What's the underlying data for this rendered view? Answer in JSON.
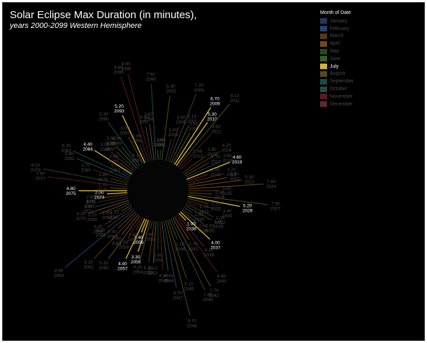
{
  "title": "Solar Eclipse Max Duration (in minutes),",
  "subtitle": "years 2000-2099 Western Hemisphere",
  "legend": {
    "title": "Month of Date",
    "highlighted": "July",
    "items": [
      {
        "label": "January",
        "color": "#203a57"
      },
      {
        "label": "February",
        "color": "#27416a"
      },
      {
        "label": "March",
        "color": "#5b3616"
      },
      {
        "label": "April",
        "color": "#6e4a22"
      },
      {
        "label": "May",
        "color": "#244a24"
      },
      {
        "label": "June",
        "color": "#3e5a2a"
      },
      {
        "label": "July",
        "color": "#d4b030"
      },
      {
        "label": "August",
        "color": "#564a1a"
      },
      {
        "label": "September",
        "color": "#1a4a4a"
      },
      {
        "label": "October",
        "color": "#264a48"
      },
      {
        "label": "November",
        "color": "#5a1a20"
      },
      {
        "label": "December",
        "color": "#5a2a34"
      }
    ]
  },
  "chart_data": {
    "type": "radial-bar",
    "title": "Solar Eclipse Max Duration (in minutes),",
    "subtitle": "years 2000-2099 Western Hemisphere",
    "points": [
      {
        "year": 2000,
        "duration": 1.0,
        "month": "June"
      },
      {
        "year": 2001,
        "duration": 1.0,
        "month": "May"
      },
      {
        "year": 2002,
        "duration": 6.4,
        "month": "August"
      },
      {
        "year": 2004,
        "duration": 2.2,
        "month": "September"
      },
      {
        "year": 2005,
        "duration": 3.6,
        "month": "November"
      },
      {
        "year": 2006,
        "duration": 7.2,
        "month": "October"
      },
      {
        "year": 2007,
        "duration": 4.1,
        "month": "August"
      },
      {
        "year": 2008,
        "duration": 3.5,
        "month": "June"
      },
      {
        "year": 2009,
        "duration": 6.7,
        "month": "July"
      },
      {
        "year": 2010,
        "duration": 5.3,
        "month": "July"
      },
      {
        "year": 2011,
        "duration": 8.1,
        "month": "June"
      },
      {
        "year": 2012,
        "duration": 4.6,
        "month": "November"
      },
      {
        "year": 2013,
        "duration": 1.6,
        "month": "November"
      },
      {
        "year": 2015,
        "duration": 2.8,
        "month": "March"
      },
      {
        "year": 2016,
        "duration": 4.2,
        "month": "March"
      },
      {
        "year": 2017,
        "duration": 2.7,
        "month": "August"
      },
      {
        "year": 2018,
        "duration": 3.8,
        "month": "February"
      },
      {
        "year": 2019,
        "duration": 4.6,
        "month": "July"
      },
      {
        "year": 2020,
        "duration": 2.2,
        "month": "December"
      },
      {
        "year": 2021,
        "duration": 3.7,
        "month": "December"
      },
      {
        "year": 2022,
        "duration": 3.9,
        "month": "April"
      },
      {
        "year": 2023,
        "duration": 5.3,
        "month": "April"
      },
      {
        "year": 2024,
        "duration": 7.4,
        "month": "April"
      },
      {
        "year": 2025,
        "duration": 3.0,
        "month": "March"
      },
      {
        "year": 2026,
        "duration": 2.3,
        "month": "August"
      },
      {
        "year": 2027,
        "duration": 7.9,
        "month": "August"
      },
      {
        "year": 2028,
        "duration": 5.2,
        "month": "July"
      },
      {
        "year": 2029,
        "duration": 2.1,
        "month": "June"
      },
      {
        "year": 2030,
        "duration": 3.4,
        "month": "November"
      },
      {
        "year": 2031,
        "duration": 1.1,
        "month": "November"
      },
      {
        "year": 2032,
        "duration": 3.0,
        "month": "May"
      },
      {
        "year": 2033,
        "duration": 3.0,
        "month": "March"
      },
      {
        "year": 2034,
        "duration": 1.0,
        "month": "September"
      },
      {
        "year": 2035,
        "duration": 2.5,
        "month": "September"
      },
      {
        "year": 2036,
        "duration": 2.0,
        "month": "August"
      },
      {
        "year": 2037,
        "duration": 4.0,
        "month": "July"
      },
      {
        "year": 2038,
        "duration": 1.0,
        "month": "July"
      },
      {
        "year": 2039,
        "duration": 4.1,
        "month": "December"
      },
      {
        "year": 2040,
        "duration": 6.9,
        "month": "November"
      },
      {
        "year": 2041,
        "duration": 2.7,
        "month": "April"
      },
      {
        "year": 2042,
        "duration": 7.7,
        "month": "April"
      },
      {
        "year": 2043,
        "duration": 7.8,
        "month": "October"
      },
      {
        "year": 2044,
        "duration": 2.1,
        "month": "August"
      },
      {
        "year": 2045,
        "duration": 6.1,
        "month": "August"
      },
      {
        "year": 2046,
        "duration": 9.7,
        "month": "August"
      },
      {
        "year": 2047,
        "duration": 6.7,
        "month": "February"
      },
      {
        "year": 2048,
        "duration": 4.9,
        "month": "June"
      },
      {
        "year": 2049,
        "duration": 4.8,
        "month": "November"
      },
      {
        "year": 2050,
        "duration": 2.8,
        "month": "May"
      },
      {
        "year": 2051,
        "duration": 4.1,
        "month": "April"
      },
      {
        "year": 2052,
        "duration": 4.1,
        "month": "March"
      },
      {
        "year": 2053,
        "duration": 0.8,
        "month": "September"
      },
      {
        "year": 2054,
        "duration": 4.2,
        "month": "August"
      },
      {
        "year": 2055,
        "duration": 3.3,
        "month": "July"
      },
      {
        "year": 2056,
        "duration": 1.4,
        "month": "July"
      },
      {
        "year": 2057,
        "duration": 4.4,
        "month": "July"
      },
      {
        "year": 2058,
        "duration": 1.4,
        "month": "March"
      },
      {
        "year": 2059,
        "duration": 2.5,
        "month": "November"
      },
      {
        "year": 2060,
        "duration": 5.3,
        "month": "April"
      },
      {
        "year": 2061,
        "duration": 2.6,
        "month": "April"
      },
      {
        "year": 2062,
        "duration": 6.2,
        "month": "March"
      },
      {
        "year": 2063,
        "duration": 2.4,
        "month": "August"
      },
      {
        "year": 2064,
        "duration": 8.9,
        "month": "February"
      },
      {
        "year": 2065,
        "duration": 3.2,
        "month": "December"
      },
      {
        "year": 2066,
        "duration": 3.2,
        "month": "December"
      },
      {
        "year": 2067,
        "duration": 1.1,
        "month": "June"
      },
      {
        "year": 2068,
        "duration": 1.8,
        "month": "May"
      },
      {
        "year": 2069,
        "duration": 3.2,
        "month": "April"
      },
      {
        "year": 2070,
        "duration": 4.2,
        "month": "April"
      },
      {
        "year": 2071,
        "duration": 3.3,
        "month": "September"
      },
      {
        "year": 2072,
        "duration": 3.0,
        "month": "November"
      },
      {
        "year": 2073,
        "duration": 2.9,
        "month": "August"
      },
      {
        "year": 2074,
        "duration": 2.0,
        "month": "July"
      },
      {
        "year": 2075,
        "duration": 4.8,
        "month": "July"
      },
      {
        "year": 2076,
        "duration": 1.7,
        "month": "June"
      },
      {
        "year": 2077,
        "duration": 7.9,
        "month": "November"
      },
      {
        "year": 2078,
        "duration": 8.5,
        "month": "May"
      },
      {
        "year": 2079,
        "duration": 1.8,
        "month": "May"
      },
      {
        "year": 2080,
        "duration": 3.7,
        "month": "November"
      },
      {
        "year": 2081,
        "duration": 5.6,
        "month": "September"
      },
      {
        "year": 2082,
        "duration": 6.2,
        "month": "September"
      },
      {
        "year": 2083,
        "duration": 1.0,
        "month": "February"
      },
      {
        "year": 2084,
        "duration": 4.4,
        "month": "July"
      },
      {
        "year": 2085,
        "duration": 1.6,
        "month": "June"
      },
      {
        "year": 2086,
        "duration": 3.0,
        "month": "December"
      },
      {
        "year": 2087,
        "duration": 2.6,
        "month": "May"
      },
      {
        "year": 2088,
        "duration": 3.0,
        "month": "April"
      },
      {
        "year": 2089,
        "duration": 2.6,
        "month": "October"
      },
      {
        "year": 2090,
        "duration": 5.3,
        "month": "September"
      },
      {
        "year": 2091,
        "duration": 0.1,
        "month": "February"
      },
      {
        "year": 2092,
        "duration": 3.0,
        "month": "August"
      },
      {
        "year": 2093,
        "duration": 5.2,
        "month": "July"
      },
      {
        "year": 2094,
        "duration": 1.8,
        "month": "January"
      },
      {
        "year": 2095,
        "duration": 8.8,
        "month": "November"
      },
      {
        "year": 2096,
        "duration": 8.9,
        "month": "November"
      },
      {
        "year": 2097,
        "duration": 3.4,
        "month": "October"
      },
      {
        "year": 2098,
        "duration": 3.6,
        "month": "April"
      },
      {
        "year": 2099,
        "duration": 7.5,
        "month": "September"
      }
    ]
  }
}
